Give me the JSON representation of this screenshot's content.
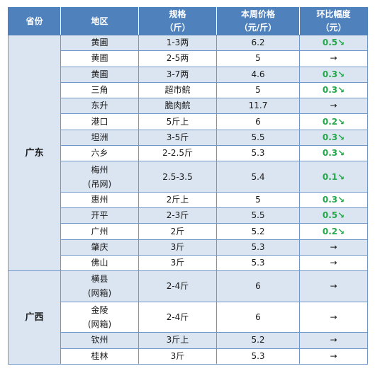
{
  "header": {
    "province": "省份",
    "region": "地区",
    "spec_line1": "规格",
    "spec_line2": "（斤）",
    "price_line1": "本周价格",
    "price_line2": "（元/斤）",
    "change_line1": "环比幅度",
    "change_line2": "（元）"
  },
  "groups": [
    {
      "province": "广东",
      "rows": [
        {
          "region": "黄圃",
          "spec": "1-3两",
          "price": "6.2",
          "change": "0.5↘"
        },
        {
          "region": "黄圃",
          "spec": "2-5两",
          "price": "5",
          "change": "→"
        },
        {
          "region": "黄圃",
          "spec": "3-7两",
          "price": "4.6",
          "change": "0.3↘"
        },
        {
          "region": "三角",
          "spec": "超市鲩",
          "price": "5",
          "change": "0.3↘"
        },
        {
          "region": "东升",
          "spec": "脆肉鲩",
          "price": "11.7",
          "change": "→"
        },
        {
          "region": "港口",
          "spec": "5斤上",
          "price": "6",
          "change": "0.2↘"
        },
        {
          "region": "坦洲",
          "spec": "3-5斤",
          "price": "5.5",
          "change": "0.3↘"
        },
        {
          "region": "六乡",
          "spec": "2-2.5斤",
          "price": "5.3",
          "change": "0.3↘"
        },
        {
          "region": "梅州",
          "region2": "(吊网)",
          "spec": "2.5-3.5",
          "price": "5.4",
          "change": "0.1↘"
        },
        {
          "region": "惠州",
          "spec": "2斤上",
          "price": "5",
          "change": "0.3↘"
        },
        {
          "region": "开平",
          "spec": "2-3斤",
          "price": "5.5",
          "change": "0.5↘"
        },
        {
          "region": "广州",
          "spec": "2斤",
          "price": "5.2",
          "change": "0.2↘"
        },
        {
          "region": "肇庆",
          "spec": "3斤",
          "price": "5.3",
          "change": "→"
        },
        {
          "region": "佛山",
          "spec": "3斤",
          "price": "5.3",
          "change": "→"
        }
      ]
    },
    {
      "province": "广西",
      "rows": [
        {
          "region": "横县",
          "region2": "(网箱)",
          "spec": "2-4斤",
          "price": "6",
          "change": "→"
        },
        {
          "region": "金陵",
          "region2": "(网箱)",
          "spec": "2-4斤",
          "price": "6",
          "change": "→"
        },
        {
          "region": "钦州",
          "spec": "3斤上",
          "price": "5.2",
          "change": "→"
        },
        {
          "region": "桂林",
          "spec": "3斤",
          "price": "5.3",
          "change": "→"
        }
      ]
    }
  ],
  "colors": {
    "header_bg": "#4f81bd",
    "stripe_bg": "#dbe5f1",
    "border": "#6f97c9",
    "decrease": "#23a84a"
  }
}
